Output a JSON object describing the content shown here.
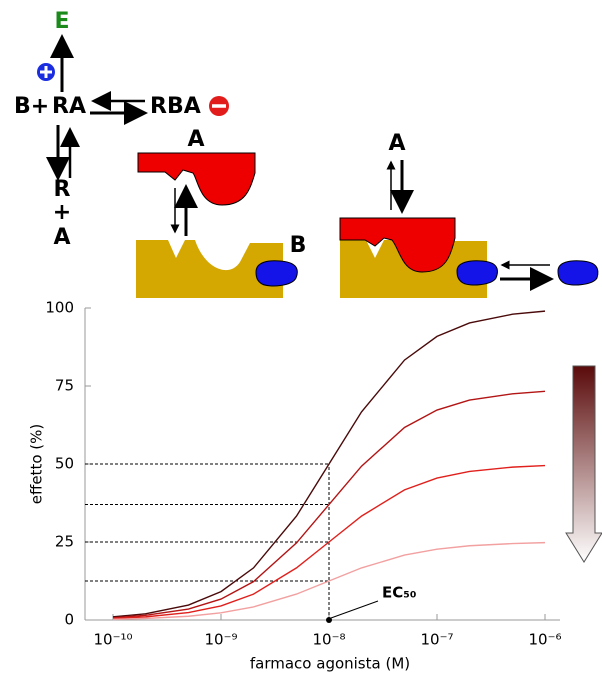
{
  "diagram": {
    "top_label": "E",
    "left_label": "B+",
    "complex": "RA",
    "ternary": "RBA",
    "dissoc_r": "R",
    "dissoc_plus": "+",
    "dissoc_a": "A",
    "agonist_left": "A",
    "agonist_right": "A",
    "modulator": "B"
  },
  "chart_data": {
    "type": "line",
    "xscale": "log",
    "xlabel": "farmaco agonista (M)",
    "ylabel": "effetto (%)",
    "x": [
      1e-10,
      2e-10,
      5e-10,
      1e-09,
      2e-09,
      5e-09,
      1e-08,
      2e-08,
      5e-08,
      1e-07,
      2e-07,
      5e-07,
      1e-06
    ],
    "series": [
      {
        "color": "#4a0a0a",
        "values": [
          1,
          2,
          4.8,
          9.1,
          16.7,
          33.3,
          50,
          66.7,
          83.3,
          90.9,
          95.2,
          98,
          99
        ]
      },
      {
        "color": "#b31414",
        "values": [
          0.7,
          1.5,
          3.5,
          6.7,
          12.3,
          24.7,
          37,
          49.3,
          61.7,
          67.3,
          70.5,
          72.5,
          73.3
        ]
      },
      {
        "color": "#e0201c",
        "values": [
          0.5,
          1,
          2.4,
          4.5,
          8.3,
          16.7,
          25,
          33.3,
          41.7,
          45.5,
          47.6,
          49,
          49.5
        ]
      },
      {
        "color": "#f2a0a0",
        "values": [
          0.2,
          0.5,
          1.2,
          2.3,
          4.2,
          8.3,
          12.5,
          16.7,
          20.8,
          22.7,
          23.8,
          24.5,
          24.8
        ]
      }
    ],
    "xlim": [
      1e-10,
      1e-06
    ],
    "xticks": [
      {
        "value": 1e-10,
        "label": "10⁻¹⁰"
      },
      {
        "value": 1e-09,
        "label": "10⁻⁹"
      },
      {
        "value": 1e-08,
        "label": "10⁻⁸"
      },
      {
        "value": 1e-07,
        "label": "10⁻⁷"
      },
      {
        "value": 1e-06,
        "label": "10⁻⁶"
      }
    ],
    "ylim": [
      0,
      100
    ],
    "yticks": [
      0,
      25,
      50,
      75,
      100
    ],
    "annotation": {
      "text": "EC₅₀",
      "x": 1e-08
    }
  }
}
